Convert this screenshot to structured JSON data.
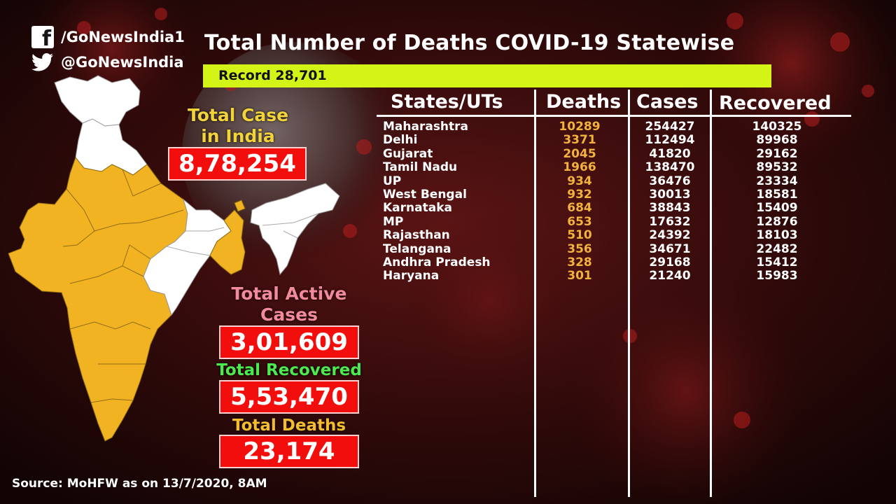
{
  "social": {
    "facebook_handle": "/GoNewsIndia1",
    "twitter_handle": "@GoNewsIndia"
  },
  "title": "Total Number of Deaths COVID-19 Statewise",
  "record": "Record 28,701",
  "stats": {
    "total_case_label_line1": "Total Case",
    "total_case_label_line2": "in India",
    "total_case_value": "8,78,254",
    "active_label_line1": "Total Active",
    "active_label_line2": "Cases",
    "active_value": "3,01,609",
    "recovered_label": "Total Recovered",
    "recovered_value": "5,53,470",
    "deaths_label": "Total Deaths",
    "deaths_value": "23,174"
  },
  "table": {
    "headers": [
      "States/UTs",
      "Deaths",
      "Cases",
      "Recovered"
    ],
    "rows": [
      {
        "state": "Maharashtra",
        "deaths": "10289",
        "cases": "254427",
        "recovered": "140325"
      },
      {
        "state": "Delhi",
        "deaths": "3371",
        "cases": "112494",
        "recovered": "89968"
      },
      {
        "state": "Gujarat",
        "deaths": "2045",
        "cases": "41820",
        "recovered": "29162"
      },
      {
        "state": "Tamil Nadu",
        "deaths": "1966",
        "cases": "138470",
        "recovered": "89532"
      },
      {
        "state": "UP",
        "deaths": "934",
        "cases": "36476",
        "recovered": "23334"
      },
      {
        "state": "West Bengal",
        "deaths": "932",
        "cases": "30013",
        "recovered": "18581"
      },
      {
        "state": "Karnataka",
        "deaths": "684",
        "cases": "38843",
        "recovered": "15409"
      },
      {
        "state": "MP",
        "deaths": "653",
        "cases": "17632",
        "recovered": "12876"
      },
      {
        "state": "Rajasthan",
        "deaths": "510",
        "cases": "24392",
        "recovered": "18103"
      },
      {
        "state": "Telangana",
        "deaths": "356",
        "cases": "34671",
        "recovered": "22482"
      },
      {
        "state": "Andhra Pradesh",
        "deaths": "328",
        "cases": "29168",
        "recovered": "15412"
      },
      {
        "state": "Haryana",
        "deaths": "301",
        "cases": "21240",
        "recovered": "15983"
      }
    ]
  },
  "source": "Source: MoHFW as on 13/7/2020, 8AM",
  "colors": {
    "record_bar": "#d4f418",
    "stat_box": "#f30e0e",
    "map_highlight": "#f2b322",
    "deaths_column": "#f2b33d"
  }
}
